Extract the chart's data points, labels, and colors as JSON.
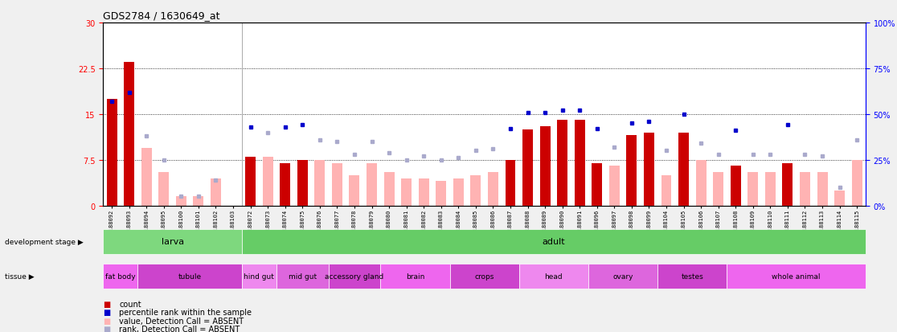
{
  "title": "GDS2784 / 1630649_at",
  "samples": [
    "GSM188092",
    "GSM188093",
    "GSM188094",
    "GSM188095",
    "GSM188100",
    "GSM188101",
    "GSM188102",
    "GSM188103",
    "GSM188072",
    "GSM188073",
    "GSM188074",
    "GSM188075",
    "GSM188076",
    "GSM188077",
    "GSM188078",
    "GSM188079",
    "GSM188080",
    "GSM188081",
    "GSM188082",
    "GSM188083",
    "GSM188084",
    "GSM188085",
    "GSM188086",
    "GSM188087",
    "GSM188088",
    "GSM188089",
    "GSM188090",
    "GSM188091",
    "GSM188096",
    "GSM188097",
    "GSM188098",
    "GSM188099",
    "GSM188104",
    "GSM188105",
    "GSM188106",
    "GSM188107",
    "GSM188108",
    "GSM188109",
    "GSM188110",
    "GSM188111",
    "GSM188112",
    "GSM188113",
    "GSM188114",
    "GSM188115"
  ],
  "count_values": [
    17.5,
    23.5,
    null,
    null,
    null,
    null,
    null,
    null,
    8.0,
    null,
    7.0,
    7.5,
    null,
    null,
    null,
    null,
    null,
    null,
    null,
    null,
    null,
    null,
    null,
    7.5,
    12.5,
    13.0,
    14.0,
    14.0,
    7.0,
    null,
    11.5,
    12.0,
    null,
    12.0,
    null,
    null,
    6.5,
    null,
    null,
    7.0,
    null,
    null,
    null,
    null
  ],
  "count_absent": [
    null,
    null,
    9.5,
    5.5,
    1.5,
    1.5,
    4.5,
    null,
    null,
    8.0,
    null,
    null,
    7.5,
    7.0,
    5.0,
    7.0,
    5.5,
    4.5,
    4.5,
    4.0,
    4.5,
    5.0,
    5.5,
    null,
    null,
    null,
    null,
    null,
    null,
    6.5,
    null,
    null,
    5.0,
    null,
    7.5,
    5.5,
    null,
    5.5,
    5.5,
    null,
    5.5,
    5.5,
    2.5,
    7.5
  ],
  "rank_values": [
    57,
    62,
    null,
    null,
    null,
    null,
    null,
    null,
    43,
    null,
    43,
    44,
    null,
    null,
    null,
    null,
    null,
    null,
    null,
    null,
    null,
    null,
    null,
    42,
    51,
    51,
    52,
    52,
    42,
    null,
    45,
    46,
    null,
    50,
    null,
    null,
    41,
    null,
    null,
    44,
    null,
    null,
    null,
    null
  ],
  "rank_absent": [
    null,
    null,
    38,
    25,
    5,
    5,
    14,
    null,
    null,
    40,
    null,
    null,
    36,
    35,
    28,
    35,
    29,
    25,
    27,
    25,
    26,
    30,
    31,
    null,
    null,
    null,
    null,
    null,
    null,
    32,
    null,
    null,
    30,
    null,
    34,
    28,
    null,
    28,
    28,
    null,
    28,
    27,
    10,
    36
  ],
  "development_stage_groups": [
    {
      "label": "larva",
      "start": 0,
      "end": 8,
      "color": "#7ed87e"
    },
    {
      "label": "adult",
      "start": 8,
      "end": 44,
      "color": "#66cc66"
    }
  ],
  "tissue_groups": [
    {
      "label": "fat body",
      "start": 0,
      "end": 2,
      "color": "#ee66ee"
    },
    {
      "label": "tubule",
      "start": 2,
      "end": 8,
      "color": "#cc44cc"
    },
    {
      "label": "hind gut",
      "start": 8,
      "end": 10,
      "color": "#ee88ee"
    },
    {
      "label": "mid gut",
      "start": 10,
      "end": 13,
      "color": "#dd66dd"
    },
    {
      "label": "accessory gland",
      "start": 13,
      "end": 16,
      "color": "#cc44cc"
    },
    {
      "label": "brain",
      "start": 16,
      "end": 20,
      "color": "#ee66ee"
    },
    {
      "label": "crops",
      "start": 20,
      "end": 24,
      "color": "#cc44cc"
    },
    {
      "label": "head",
      "start": 24,
      "end": 28,
      "color": "#ee88ee"
    },
    {
      "label": "ovary",
      "start": 28,
      "end": 32,
      "color": "#dd66dd"
    },
    {
      "label": "testes",
      "start": 32,
      "end": 36,
      "color": "#cc44cc"
    },
    {
      "label": "whole animal",
      "start": 36,
      "end": 44,
      "color": "#ee66ee"
    }
  ],
  "ylim_left": [
    0,
    30
  ],
  "ylim_right": [
    0,
    100
  ],
  "yticks_left": [
    0,
    7.5,
    15,
    22.5,
    30
  ],
  "yticks_right": [
    0,
    25,
    50,
    75,
    100
  ],
  "bar_color": "#cc0000",
  "bar_absent_color": "#ffb3b3",
  "rank_color": "#0000cc",
  "rank_absent_color": "#aaaacc",
  "plot_bg_color": "#ffffff",
  "fig_bg_color": "#f0f0f0",
  "dotted_line_values": [
    7.5,
    15,
    22.5
  ]
}
